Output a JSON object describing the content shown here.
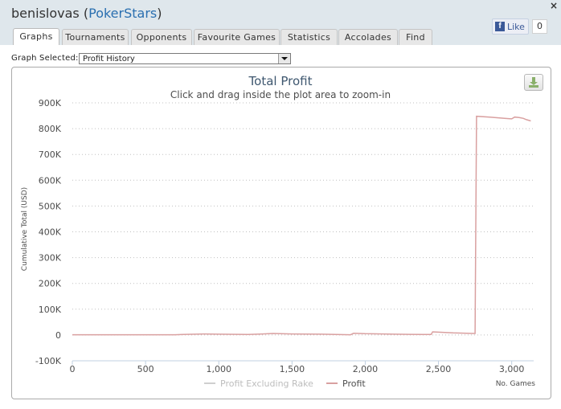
{
  "window": {
    "user": "benislovas",
    "site": "PokerStars",
    "close_label": "×"
  },
  "tabs": [
    {
      "label": "Graphs",
      "active": true
    },
    {
      "label": "Tournaments",
      "active": false
    },
    {
      "label": "Opponents",
      "active": false
    },
    {
      "label": "Favourite Games",
      "active": false
    },
    {
      "label": "Statistics",
      "active": false
    },
    {
      "label": "Accolades",
      "active": false
    },
    {
      "label": "Find",
      "active": false
    }
  ],
  "facebook": {
    "like_label": "Like",
    "count": "0"
  },
  "graph_selector": {
    "label": "Graph Selected:",
    "value": "Profit History"
  },
  "chart_data": {
    "type": "line",
    "title": "Total Profit",
    "subtitle": "Click and drag inside the plot area to zoom-in",
    "xlabel": "No. Games",
    "ylabel": "Cumulative Total (USD)",
    "xlim": [
      0,
      3150
    ],
    "ylim": [
      -100000,
      900000
    ],
    "x_ticks": [
      0,
      500,
      1000,
      1500,
      2000,
      2500,
      3000
    ],
    "x_tick_labels": [
      "0",
      "500",
      "1,000",
      "1,500",
      "2,000",
      "2,500",
      "3,000"
    ],
    "y_ticks": [
      -100000,
      0,
      100000,
      200000,
      300000,
      400000,
      500000,
      600000,
      700000,
      800000,
      900000
    ],
    "y_tick_labels": [
      "-100K",
      "0",
      "100K",
      "200K",
      "300K",
      "400K",
      "500K",
      "600K",
      "700K",
      "800K",
      "900K"
    ],
    "grid": "horizontal dotted",
    "legend_position": "bottom-center",
    "series": [
      {
        "name": "Profit Excluding Rake",
        "color": "#cfcfcf",
        "x": [],
        "y": []
      },
      {
        "name": "Profit",
        "color": "#d9a0a0",
        "x": [
          0,
          300,
          700,
          750,
          900,
          1000,
          1200,
          1300,
          1370,
          1500,
          1700,
          1900,
          1920,
          2000,
          2200,
          2400,
          2450,
          2460,
          2600,
          2740,
          2750,
          2760,
          2850,
          2950,
          3000,
          3020,
          3050,
          3080,
          3100,
          3130
        ],
        "y": [
          1000,
          1000,
          800,
          2000,
          4000,
          3000,
          2000,
          4000,
          6000,
          4000,
          3000,
          1000,
          7000,
          5000,
          3000,
          2000,
          2000,
          12000,
          8000,
          6000,
          6000,
          848000,
          845000,
          840000,
          838000,
          845000,
          843000,
          840000,
          835000,
          830000
        ]
      }
    ]
  }
}
